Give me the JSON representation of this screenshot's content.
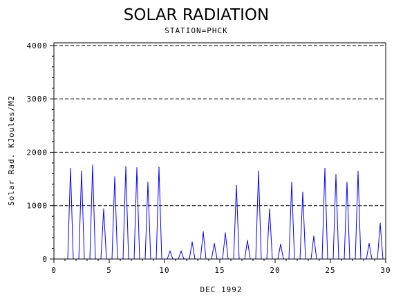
{
  "chart_data": {
    "type": "line",
    "title": "SOLAR RADIATION",
    "subtitle": "STATION=PHCK",
    "xlabel": "DEC 1992",
    "ylabel": "Solar Rad. KJoules/M2",
    "xlim": [
      0,
      30
    ],
    "ylim": [
      0,
      4050
    ],
    "x_ticks": [
      0,
      5,
      10,
      15,
      20,
      25,
      30
    ],
    "x_tick_labels": [
      "0",
      "5",
      "10",
      "15",
      "20",
      "25",
      "30"
    ],
    "y_ticks": [
      0,
      1000,
      2000,
      3000,
      4000
    ],
    "y_tick_labels": [
      "0",
      "1000",
      "2000",
      "3000",
      "4000"
    ],
    "grid": "horizontal-dashed",
    "line_color": "#0000ff",
    "series": [
      {
        "x": [
          1.25,
          1.5,
          1.75,
          2.25,
          2.5,
          2.75,
          3.25,
          3.5,
          3.75,
          4.25,
          4.5,
          4.75,
          5.25,
          5.5,
          5.75,
          6.25,
          6.5,
          6.75,
          7.25,
          7.5,
          7.75,
          8.25,
          8.5,
          8.75,
          9.25,
          9.5,
          9.75,
          10.25,
          10.5,
          10.75,
          11.25,
          11.5,
          11.75,
          12.25,
          12.5,
          12.75,
          13.25,
          13.5,
          13.75,
          14.25,
          14.5,
          14.75,
          15.25,
          15.5,
          15.75,
          16.25,
          16.5,
          16.75,
          17.25,
          17.5,
          17.75,
          18.25,
          18.5,
          18.75,
          19.25,
          19.5,
          19.75,
          20.25,
          20.5,
          20.75,
          21.25,
          21.5,
          21.75,
          22.25,
          22.5,
          22.75,
          23.25,
          23.5,
          23.75,
          24.25,
          24.5,
          24.75,
          25.25,
          25.5,
          25.75,
          26.25,
          26.5,
          26.75,
          27.25,
          27.5,
          27.75,
          28.25,
          28.5,
          28.75,
          29.25,
          29.5,
          29.75
        ],
        "y": [
          0,
          1700,
          0,
          0,
          1650,
          0,
          0,
          1760,
          0,
          0,
          940,
          0,
          0,
          1540,
          0,
          0,
          1730,
          0,
          0,
          1710,
          0,
          0,
          1440,
          0,
          0,
          1720,
          0,
          0,
          150,
          0,
          0,
          150,
          0,
          0,
          320,
          0,
          0,
          510,
          0,
          0,
          290,
          0,
          0,
          490,
          0,
          0,
          1380,
          0,
          0,
          350,
          0,
          0,
          1650,
          0,
          0,
          940,
          0,
          0,
          280,
          0,
          0,
          1440,
          0,
          0,
          1250,
          0,
          0,
          430,
          0,
          0,
          1700,
          0,
          0,
          1580,
          0,
          0,
          1440,
          0,
          0,
          1640,
          0,
          0,
          290,
          0,
          0,
          670,
          0
        ]
      }
    ]
  }
}
